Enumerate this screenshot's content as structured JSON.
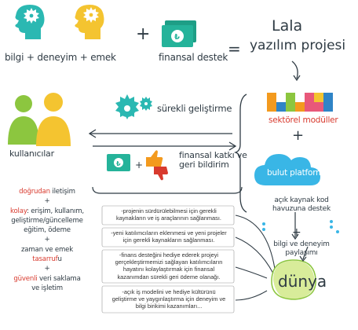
{
  "header": {
    "resources": [
      "bilgi",
      "deneyim",
      "emek"
    ],
    "plus": "+",
    "funding": "finansal destek",
    "equals": "=",
    "project_title": [
      "Lala",
      "yazılım projesi"
    ]
  },
  "modules": {
    "sectoral": "sektörel modüller",
    "cloud": "bulut platform",
    "plus": "+"
  },
  "users": {
    "title": "kullanıcılar",
    "list": [
      {
        "hl": "doğrudan",
        "rest": " iletişim"
      },
      {
        "hl": "",
        "rest": "+"
      },
      {
        "hl": "kolay",
        "rest": ": erişim, kullanım,"
      },
      {
        "hl": "",
        "rest": "geliştirme/güncelleme"
      },
      {
        "hl": "",
        "rest": "eğitim, ödeme"
      },
      {
        "hl": "",
        "rest": "+"
      },
      {
        "hl": "",
        "rest": "zaman ve emek"
      },
      {
        "hl": "tasarruf",
        "rest": "u"
      },
      {
        "hl": "",
        "rest": "+"
      },
      {
        "hl": "güvenli",
        "rest": " veri saklama"
      },
      {
        "hl": "",
        "rest": "ve işletim"
      }
    ]
  },
  "flows": {
    "development": "sürekli geliştirme",
    "support": [
      "finansal katkı ve",
      "geri bildirim"
    ]
  },
  "community": {
    "opensource": [
      "açık kaynak kod",
      "havuzuna destek"
    ],
    "plus": "+",
    "sharing": [
      "bilgi ve deneyim",
      "paylaşımı"
    ],
    "world": "dünya"
  },
  "benefits": [
    [
      "-projenin sürdürülebilmesi için gerekli",
      "kaynakların ve iş araçlarının sağlanması."
    ],
    [
      "-yeni katılımcıların eklenmesi ve yeni projeler",
      "için gerekli kaynakların sağlanması."
    ],
    [
      "-finans desteğini hediye ederek projeyi",
      "gerçekleştirmemizi sağlayan katılımcıların",
      "hayatını kolaylaştırmak için finansal",
      "kazanımdan sürekli geri ödeme olanağı."
    ],
    [
      "-açık iş modelini ve hediye kültürünü",
      "geliştirme ve yaygınlaştırma için deneyim ve",
      "bilgi birikimi kazanımları..."
    ]
  ],
  "colors": {
    "teal": "#2bb8b2",
    "yellow": "#f4c430",
    "green": "#8cc63f",
    "orange": "#f39a1e",
    "red": "#d83a2e",
    "pink": "#e8587a",
    "blue": "#2f84c6",
    "sky": "#39b6e6",
    "ink": "#2f3b44"
  }
}
